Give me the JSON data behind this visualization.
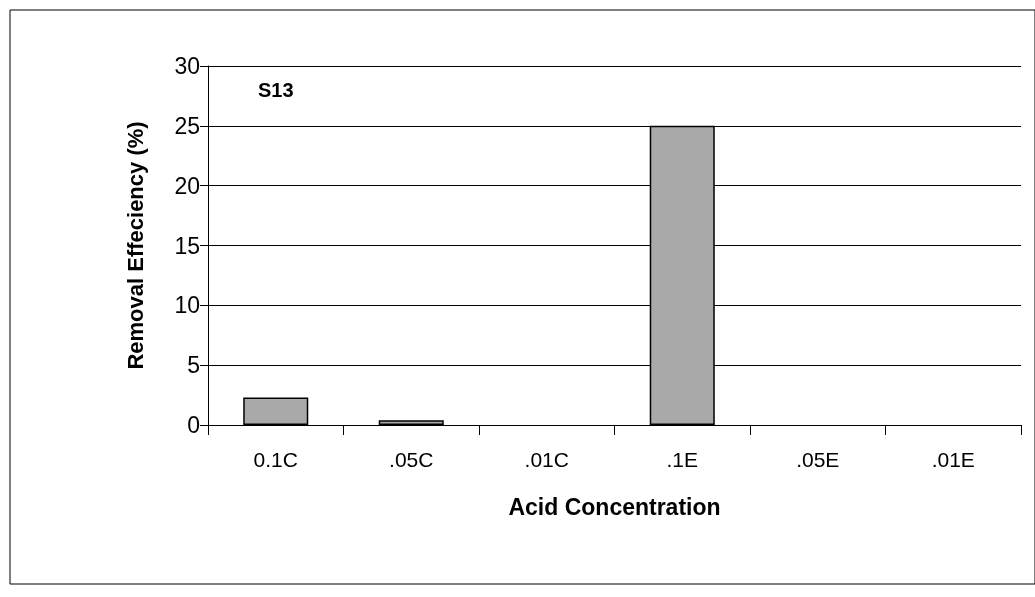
{
  "chart_data": {
    "type": "bar",
    "xlabel": "Acid Concentration",
    "ylabel": "Removal Effeciency (%)",
    "categories": [
      "0.1C",
      ".05C",
      ".01C",
      ".1E",
      ".05E",
      ".01E"
    ],
    "values": [
      2.3,
      0.4,
      0,
      25,
      0,
      0
    ],
    "color": "#a9a9a9",
    "ylim": [
      0,
      30
    ],
    "yticks": [
      0,
      5,
      10,
      15,
      20,
      25,
      30
    ],
    "grid": "y",
    "annotations": [
      "S13"
    ]
  }
}
